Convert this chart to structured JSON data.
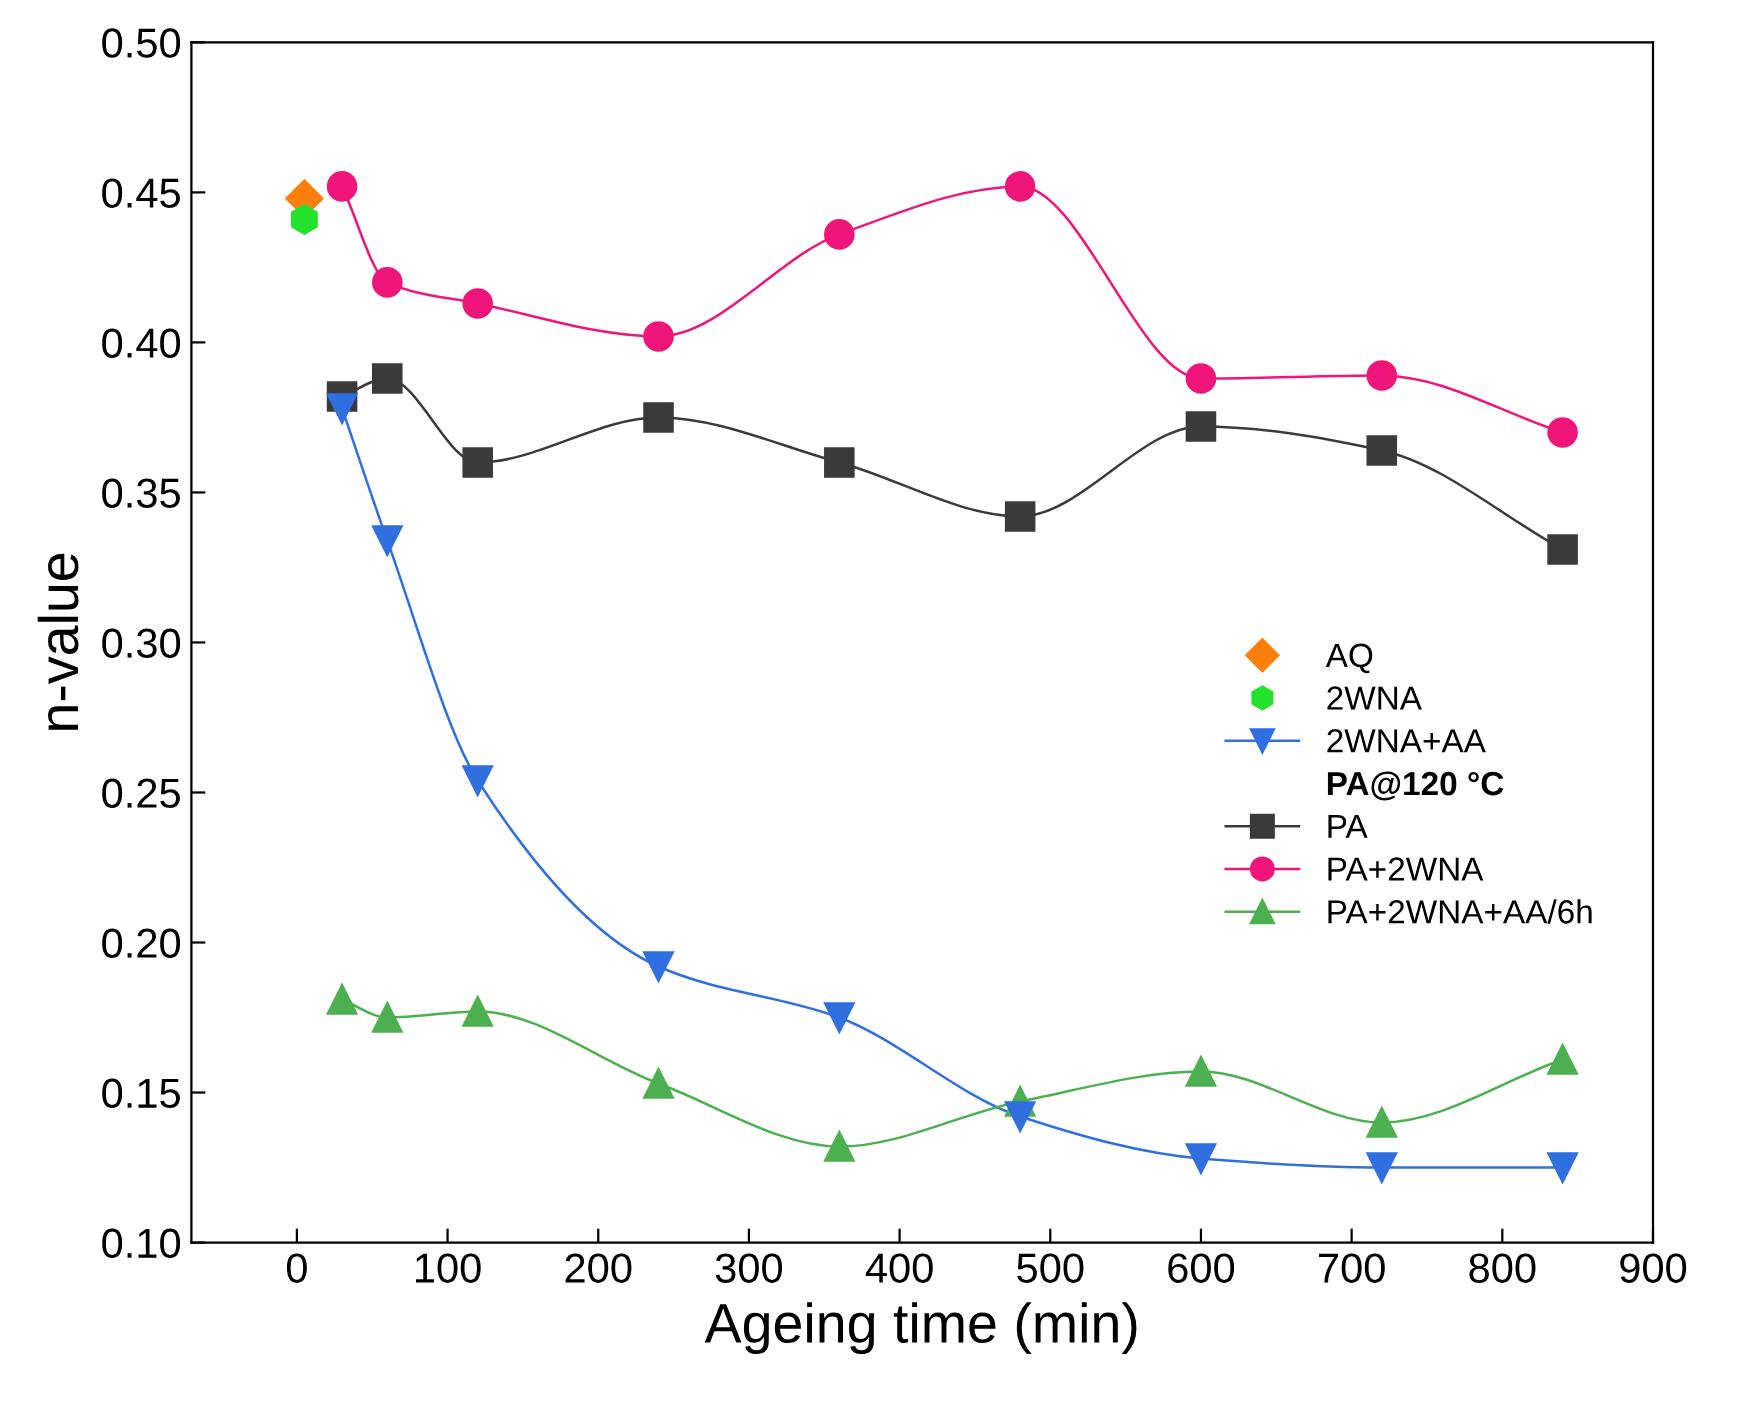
{
  "chart_data": {
    "type": "line",
    "xlabel": "Ageing time (min)",
    "ylabel": "n-value",
    "xlim": [
      -70,
      900
    ],
    "xticks": [
      0,
      100,
      200,
      300,
      400,
      500,
      600,
      700,
      800,
      900
    ],
    "ylim": [
      0.1,
      0.5
    ],
    "yticks": [
      {
        "value": 0.1,
        "label": "0.10"
      },
      {
        "value": 0.15,
        "label": "0.15"
      },
      {
        "value": 0.2,
        "label": "0.20"
      },
      {
        "value": 0.25,
        "label": "0.25"
      },
      {
        "value": 0.3,
        "label": "0.30"
      },
      {
        "value": 0.35,
        "label": "0.35"
      },
      {
        "value": 0.4,
        "label": "0.40"
      },
      {
        "value": 0.45,
        "label": "0.45"
      },
      {
        "value": 0.5,
        "label": "0.50"
      }
    ],
    "grid": false,
    "legend": "right",
    "annotations": [
      "PA@120 °C"
    ],
    "series": [
      {
        "name": "AQ",
        "type": "scatter",
        "marker": "diamond",
        "color": "#ff7f0e",
        "x": [
          5
        ],
        "values": [
          0.448
        ]
      },
      {
        "name": "2WNA",
        "type": "scatter",
        "color": "#22e22b",
        "x": [
          5
        ],
        "values": [
          0.441
        ]
      },
      {
        "name": "2WNA+AA",
        "marker": "triangle_down",
        "color": "#2f6fe0",
        "x": [
          30,
          60,
          120,
          240,
          360,
          480,
          600,
          720,
          840
        ],
        "values": [
          0.378,
          0.334,
          0.254,
          0.192,
          0.175,
          0.142,
          0.128,
          0.125,
          0.125
        ]
      },
      {
        "name": "PA",
        "marker": "square",
        "color": "#3a3a3a",
        "x": [
          30,
          60,
          120,
          240,
          360,
          480,
          600,
          720,
          840
        ],
        "values": [
          0.382,
          0.388,
          0.36,
          0.375,
          0.36,
          0.342,
          0.372,
          0.364,
          0.331
        ]
      },
      {
        "name": "PA+2WNA",
        "marker": "circle",
        "color": "#f0157a",
        "x": [
          30,
          60,
          120,
          240,
          360,
          480,
          600,
          720,
          840
        ],
        "values": [
          0.452,
          0.42,
          0.413,
          0.402,
          0.436,
          0.452,
          0.388,
          0.389,
          0.37
        ]
      },
      {
        "name": "PA+2WNA+AA/6h",
        "marker": "triangle",
        "color": "#4caf50",
        "x": [
          30,
          60,
          120,
          240,
          360,
          480,
          600,
          720,
          840
        ],
        "values": [
          0.181,
          0.175,
          0.177,
          0.153,
          0.132,
          0.147,
          0.157,
          0.14,
          0.161
        ]
      }
    ]
  }
}
